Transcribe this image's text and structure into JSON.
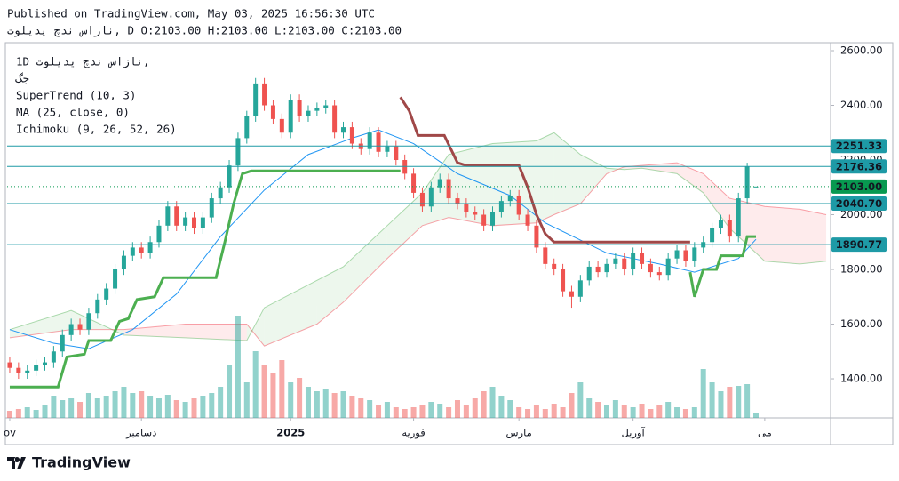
{
  "chart_data": {
    "type": "candlestick",
    "title": "Published on TradingView.com, May 03, 2025 16:56:30 UTC",
    "subtitle": "نازاس ندچ یدیلوت, D O:2103.00 H:2103.00 L:2103.00 C:2103.00",
    "legend": [
      "1D نازاس ندچ یدیلوت,",
      "جگ",
      "SuperTrend (10, 3)",
      "MA (25, close, 0)",
      "Ichimoku (9, 26, 52, 26)"
    ],
    "brand": "TradingView",
    "xlim": [
      -0.3,
      93.5
    ],
    "ylim": [
      1257,
      2626
    ],
    "grid": false,
    "up_color": "#26a69a",
    "down_color": "#ef5350",
    "yticks": [
      {
        "value": 1400,
        "label": "1400.00"
      },
      {
        "value": 1600,
        "label": "1600.00"
      },
      {
        "value": 1800,
        "label": "1800.00"
      },
      {
        "value": 2000,
        "label": "2000.00"
      },
      {
        "value": 2200,
        "label": "2200.00"
      },
      {
        "value": 2400,
        "label": "2400.00"
      },
      {
        "value": 2600,
        "label": "2600.00"
      }
    ],
    "xticks": [
      {
        "value": 0,
        "label": "ov"
      },
      {
        "value": 15,
        "label": "دسامبر"
      },
      {
        "value": 32,
        "label": "2025"
      },
      {
        "value": 46,
        "label": "فوريه"
      },
      {
        "value": 58,
        "label": "مارس"
      },
      {
        "value": 71,
        "label": "آوريل"
      },
      {
        "value": 86,
        "label": "مى"
      }
    ],
    "open": [
      1460,
      1440,
      1420,
      1430,
      1450,
      1460,
      1500,
      1560,
      1600,
      1580,
      1640,
      1690,
      1730,
      1800,
      1850,
      1880,
      1860,
      1900,
      1960,
      2030,
      1960,
      1990,
      1950,
      1990,
      2060,
      2100,
      2180,
      2280,
      2360,
      2480,
      2400,
      2350,
      2300,
      2420,
      2360,
      2380,
      2390,
      2400,
      2300,
      2320,
      2260,
      2240,
      2300,
      2230,
      2250,
      2200,
      2150,
      2080,
      2030,
      2100,
      2130,
      2060,
      2040,
      2010,
      2000,
      1960,
      2010,
      2050,
      2070,
      2000,
      1960,
      1880,
      1820,
      1800,
      1720,
      1700,
      1760,
      1810,
      1790,
      1820,
      1840,
      1800,
      1860,
      1820,
      1790,
      1780,
      1840,
      1870,
      1830,
      1880,
      1900,
      1950,
      1980,
      1920,
      2060,
      2103
    ],
    "high": [
      1480,
      1460,
      1450,
      1470,
      1480,
      1520,
      1580,
      1620,
      1620,
      1660,
      1710,
      1750,
      1820,
      1870,
      1900,
      1900,
      1920,
      1980,
      2050,
      2050,
      2010,
      2010,
      2010,
      2080,
      2120,
      2200,
      2300,
      2380,
      2500,
      2500,
      2420,
      2370,
      2440,
      2440,
      2400,
      2410,
      2420,
      2420,
      2340,
      2340,
      2280,
      2320,
      2320,
      2270,
      2270,
      2220,
      2170,
      2100,
      2120,
      2150,
      2150,
      2080,
      2060,
      2030,
      2020,
      2030,
      2070,
      2090,
      2090,
      2020,
      1980,
      1900,
      1840,
      1820,
      1740,
      1780,
      1830,
      1830,
      1840,
      1860,
      1860,
      1880,
      1880,
      1840,
      1810,
      1860,
      1890,
      1890,
      1900,
      1920,
      1970,
      2000,
      2000,
      2080,
      2190,
      2103
    ],
    "low": [
      1420,
      1400,
      1400,
      1410,
      1430,
      1440,
      1480,
      1540,
      1560,
      1560,
      1620,
      1670,
      1710,
      1780,
      1830,
      1840,
      1840,
      1880,
      1940,
      1940,
      1940,
      1930,
      1930,
      1970,
      2040,
      2080,
      2160,
      2260,
      2340,
      2380,
      2330,
      2280,
      2280,
      2340,
      2340,
      2360,
      2370,
      2280,
      2280,
      2240,
      2220,
      2220,
      2210,
      2210,
      2180,
      2130,
      2060,
      2010,
      2010,
      2080,
      2040,
      2020,
      1990,
      1980,
      1940,
      1940,
      1990,
      2030,
      1980,
      1940,
      1860,
      1800,
      1780,
      1700,
      1660,
      1680,
      1740,
      1770,
      1770,
      1800,
      1780,
      1780,
      1800,
      1770,
      1760,
      1760,
      1820,
      1810,
      1810,
      1860,
      1880,
      1930,
      1900,
      1900,
      2040,
      2103
    ],
    "close": [
      1440,
      1420,
      1430,
      1450,
      1460,
      1500,
      1560,
      1600,
      1580,
      1640,
      1690,
      1730,
      1800,
      1850,
      1880,
      1860,
      1900,
      1960,
      2030,
      1960,
      1990,
      1950,
      1990,
      2060,
      2100,
      2180,
      2280,
      2360,
      2480,
      2400,
      2350,
      2300,
      2420,
      2360,
      2380,
      2390,
      2400,
      2300,
      2320,
      2260,
      2240,
      2300,
      2230,
      2250,
      2200,
      2150,
      2080,
      2030,
      2100,
      2130,
      2060,
      2040,
      2010,
      2000,
      1960,
      2010,
      2050,
      2070,
      2000,
      1960,
      1880,
      1820,
      1800,
      1720,
      1700,
      1760,
      1810,
      1790,
      1820,
      1840,
      1800,
      1860,
      1820,
      1790,
      1780,
      1840,
      1870,
      1830,
      1880,
      1900,
      1950,
      1980,
      1920,
      2060,
      2176,
      2103
    ],
    "volume": [
      8,
      10,
      12,
      9,
      14,
      25,
      20,
      22,
      18,
      28,
      22,
      25,
      30,
      35,
      28,
      30,
      25,
      22,
      26,
      20,
      18,
      22,
      25,
      28,
      35,
      60,
      115,
      40,
      75,
      60,
      50,
      65,
      40,
      45,
      35,
      30,
      32,
      28,
      30,
      25,
      22,
      20,
      15,
      18,
      12,
      10,
      12,
      14,
      18,
      16,
      12,
      20,
      14,
      22,
      30,
      35,
      25,
      20,
      12,
      10,
      14,
      10,
      16,
      12,
      28,
      40,
      22,
      18,
      15,
      20,
      14,
      12,
      16,
      10,
      14,
      18,
      12,
      10,
      12,
      55,
      40,
      30,
      35,
      36,
      38,
      6
    ],
    "ma": {
      "color": "#2196f3",
      "x": [
        0,
        5,
        9,
        14,
        19,
        24,
        29,
        34,
        39,
        42,
        46,
        51,
        57,
        61,
        68,
        74,
        78,
        83,
        85
      ],
      "values": [
        1580,
        1530,
        1510,
        1580,
        1710,
        1920,
        2090,
        2220,
        2280,
        2310,
        2260,
        2150,
        2070,
        1970,
        1860,
        1820,
        1790,
        1840,
        1910
      ]
    },
    "supertrend": [
      {
        "color": "#4caf50",
        "x": [
          0,
          5.5,
          6.5,
          8.5,
          9,
          11.5,
          12.5,
          13.5,
          14.5,
          16.5,
          17.5,
          23.5,
          24.5,
          25.5,
          26.5,
          27.5,
          44.5
        ],
        "values": [
          1370,
          1370,
          1480,
          1490,
          1540,
          1540,
          1610,
          1620,
          1690,
          1700,
          1770,
          1770,
          1900,
          2040,
          2150,
          2160,
          2160
        ]
      },
      {
        "color": "#a04848",
        "x": [
          44.5,
          45.5,
          46.5,
          49.5,
          51,
          52,
          58,
          59,
          60,
          61,
          62,
          77.5
        ],
        "values": [
          2430,
          2380,
          2290,
          2290,
          2190,
          2180,
          2180,
          2100,
          2000,
          1930,
          1900,
          1900
        ]
      },
      {
        "color": "#4caf50",
        "x": [
          77.5,
          78,
          79,
          80.5,
          81,
          83.5,
          84,
          85
        ],
        "values": [
          1790,
          1700,
          1800,
          1800,
          1850,
          1850,
          1920,
          1920
        ]
      }
    ],
    "ichimoku": {
      "x": [
        0,
        7,
        13,
        20,
        27,
        29,
        35,
        38,
        43,
        47,
        50,
        55,
        60,
        62,
        65,
        68,
        70,
        72,
        76,
        79,
        82,
        86,
        90,
        93
      ],
      "span_a": [
        1580,
        1650,
        1560,
        1550,
        1540,
        1660,
        1760,
        1810,
        1960,
        2080,
        2220,
        2260,
        2270,
        2300,
        2220,
        2170,
        2165,
        2170,
        2150,
        2080,
        1950,
        1830,
        1820,
        1830
      ],
      "span_b": [
        1550,
        1580,
        1580,
        1600,
        1600,
        1520,
        1600,
        1680,
        1840,
        1960,
        1990,
        1960,
        1970,
        2000,
        2040,
        2150,
        2175,
        2180,
        2190,
        2150,
        2060,
        2030,
        2020,
        2000
      ],
      "color_a": "#4caf50",
      "color_b": "#f23645"
    },
    "price_lines": [
      {
        "value": 2251.33,
        "label": "2251.33",
        "color": "#1e9aa6",
        "style": "solid"
      },
      {
        "value": 2176.36,
        "label": "2176.36",
        "color": "#1e9aa6",
        "style": "solid"
      },
      {
        "value": 2103.0,
        "label": "2103.00",
        "color": "#089950",
        "style": "dotted"
      },
      {
        "value": 2040.7,
        "label": "2040.70",
        "color": "#1e9aa6",
        "style": "solid"
      },
      {
        "value": 1890.77,
        "label": "1890.77",
        "color": "#1e9aa6",
        "style": "solid"
      }
    ]
  }
}
